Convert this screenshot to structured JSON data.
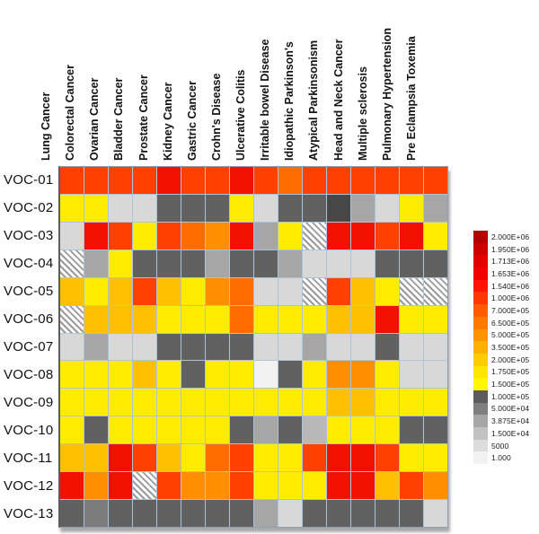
{
  "chart_data": {
    "type": "heatmap",
    "title": "",
    "x_categories": [
      "Lung Cancer",
      "Colorectal Cancer",
      "Ovarian Cancer",
      "Bladder Cancer",
      "Prostate Cancer",
      "Kidney Cancer",
      "Gastric Cancer",
      "Crohn's Disease",
      "Ulcerative Colitis",
      "Irritable bowel Disease",
      "Idiopathic Parkinson's",
      "Atypical Parkinsonism",
      "Head and Neck Cancer",
      "Multiple sclerosis",
      "Pulmonary Hypertension",
      "Pre Eclampsia Toxemia"
    ],
    "y_categories": [
      "VOC-01",
      "VOC-02",
      "VOC-03",
      "VOC-04",
      "VOC-05",
      "VOC-06",
      "VOC-07",
      "VOC-08",
      "VOC-09",
      "VOC-10",
      "VOC-11",
      "VOC-12",
      "VOC-13"
    ],
    "palette": {
      "rd": "#F21000",
      "or": "#FF4000",
      "o2": "#FF6D00",
      "o": "#FF8F00",
      "am": "#FFC000",
      "y": "#FFEC00",
      "g0": "#F2F2F2",
      "g1": "#D8D8D8",
      "g2b": "#B8B8B8",
      "g2": "#A6A6A6",
      "g3b": "#7C7C7C",
      "g3": "#616161",
      "g4": "#474747",
      "ha": "hatched"
    },
    "color_key_value_hint": {
      "rd": "1.540E+06 - 2.000E+06",
      "or": "1.000E+06",
      "o2": "6.500E+05 - 7.000E+05",
      "o": "5.000E+05",
      "am": "3.500E+05",
      "y": "1.500E+05 - 2.000E+05",
      "g3": "1.000E+05",
      "g2": "3.875E+04 - 5.000E+04",
      "g1": "5000 - 1.500E+04",
      "g0": "1.000",
      "ha": "no data (hatched)"
    },
    "cells": [
      [
        "or",
        "or",
        "or",
        "or",
        "rd",
        "or",
        "or",
        "rd",
        "or",
        "o2",
        "or",
        "or",
        "or",
        "or",
        "or",
        "or"
      ],
      [
        "y",
        "y",
        "g1",
        "g1",
        "g3",
        "g3",
        "g3",
        "y",
        "g1",
        "g3",
        "g3",
        "g4",
        "g2",
        "g1",
        "y",
        "g2"
      ],
      [
        "g1",
        "rd",
        "or",
        "y",
        "or",
        "o2",
        "o",
        "rd",
        "g2",
        "y",
        "ha",
        "rd",
        "rd",
        "or",
        "rd",
        "y"
      ],
      [
        "ha",
        "g2",
        "y",
        "g3",
        "g3",
        "g3",
        "g2",
        "g3",
        "g3",
        "g2",
        "g1",
        "g1",
        "g1",
        "g3",
        "g3",
        "g3"
      ],
      [
        "am",
        "y",
        "am",
        "or",
        "am",
        "y",
        "o",
        "o2",
        "g1",
        "g1",
        "ha",
        "or",
        "am",
        "y",
        "ha",
        "ha"
      ],
      [
        "ha",
        "am",
        "am",
        "am",
        "y",
        "y",
        "y",
        "o2",
        "y",
        "y",
        "y",
        "am",
        "am",
        "rd",
        "y",
        "y"
      ],
      [
        "g1",
        "g2",
        "g1",
        "g1",
        "g3",
        "g3",
        "g3",
        "g3",
        "g1",
        "g1",
        "g2",
        "g1",
        "g1",
        "g3",
        "g1",
        "g1"
      ],
      [
        "y",
        "y",
        "y",
        "am",
        "y",
        "g3",
        "y",
        "y",
        "g0",
        "g3",
        "y",
        "o",
        "o",
        "y",
        "g1",
        "g1"
      ],
      [
        "y",
        "y",
        "y",
        "y",
        "y",
        "y",
        "y",
        "y",
        "y",
        "y",
        "y",
        "am",
        "am",
        "y",
        "y",
        "y"
      ],
      [
        "y",
        "g3",
        "y",
        "y",
        "y",
        "y",
        "y",
        "g3",
        "g2",
        "g3",
        "g2b",
        "y",
        "y",
        "y",
        "g3",
        "g3"
      ],
      [
        "am",
        "am",
        "rd",
        "or",
        "am",
        "y",
        "o2",
        "or",
        "y",
        "y",
        "or",
        "rd",
        "rd",
        "or",
        "y",
        "y"
      ],
      [
        "rd",
        "o",
        "rd",
        "ha",
        "or",
        "o",
        "o",
        "or",
        "y",
        "y",
        "y",
        "rd",
        "rd",
        "am",
        "or",
        "o"
      ],
      [
        "g3",
        "g3b",
        "g3",
        "g3",
        "g3",
        "g3",
        "g3",
        "g3",
        "g2",
        "g1",
        "g3",
        "g3",
        "g3",
        "g3",
        "g3",
        "g1"
      ]
    ],
    "legend_scale": [
      {
        "label": "2.000E+06",
        "color": "#B30000"
      },
      {
        "label": "1.950E+06",
        "color": "#CC0000"
      },
      {
        "label": "1.713E+06",
        "color": "#E30000"
      },
      {
        "label": "1.653E+06",
        "color": "#F20000"
      },
      {
        "label": "1.540E+06",
        "color": "#FF1400"
      },
      {
        "label": "1.000E+06",
        "color": "#FF3800"
      },
      {
        "label": "7.000E+05",
        "color": "#FF5C00"
      },
      {
        "label": "6.500E+05",
        "color": "#FF7800"
      },
      {
        "label": "5.000E+05",
        "color": "#FF9400"
      },
      {
        "label": "3.500E+05",
        "color": "#FFB000"
      },
      {
        "label": "2.000E+05",
        "color": "#FFCC00"
      },
      {
        "label": "1.750E+05",
        "color": "#FFE500"
      },
      {
        "label": "1.500E+05",
        "color": "#FFF800"
      },
      {
        "label": "1.000E+05",
        "color": "#5C5C5C"
      },
      {
        "label": "5.000E+04",
        "color": "#7F7F7F"
      },
      {
        "label": "3.875E+04",
        "color": "#A6A6A6"
      },
      {
        "label": "1.500E+04",
        "color": "#C2C2C2"
      },
      {
        "label": "5000",
        "color": "#DCDCDC"
      },
      {
        "label": "1.000",
        "color": "#F2F2F2"
      }
    ],
    "layout": {
      "legend_position": "right",
      "column_labels_rotated_degrees": 90,
      "gridline_color": "#aac4de"
    }
  }
}
